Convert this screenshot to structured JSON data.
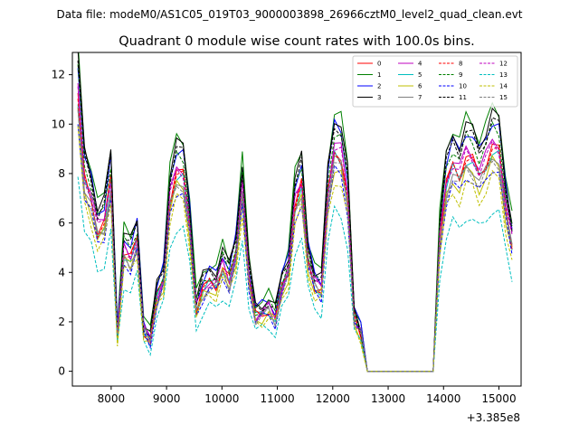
{
  "suptitle": "Data file: modeM0/AS1C05_019T03_9000003898_26966cztM0_level2_quad_clean.evt",
  "chart_data": {
    "type": "line",
    "title": "Quadrant 0 module wise count rates with 100.0s bins.",
    "xlabel": "",
    "ylabel": "",
    "x_offset_label": "+3.385e8",
    "xlim": [
      7300,
      15400
    ],
    "ylim": [
      -0.6,
      12.9
    ],
    "xticks": [
      8000,
      9000,
      10000,
      11000,
      12000,
      13000,
      14000,
      15000
    ],
    "yticks": [
      0,
      2,
      4,
      6,
      8,
      10,
      12
    ],
    "legend_position": "top-right",
    "series_template": [
      11.6,
      8.0,
      7.2,
      5.9,
      6.2,
      8.0,
      1.5,
      5.0,
      4.7,
      5.5,
      1.7,
      1.3,
      3.1,
      3.8,
      7.2,
      8.3,
      8.2,
      6.1,
      2.6,
      3.4,
      3.7,
      3.6,
      4.4,
      3.8,
      4.9,
      7.6,
      3.9,
      2.3,
      2.4,
      2.6,
      2.2,
      3.5,
      4.2,
      7.0,
      7.8,
      4.6,
      3.6,
      3.4,
      7.4,
      9.2,
      9.0,
      7.3,
      2.2,
      1.6,
      0.0,
      0.0,
      0.0,
      0.0,
      0.0,
      0.0,
      0.0,
      0.0,
      0.0,
      0.0,
      0.0,
      5.5,
      7.8,
      8.6,
      8.2,
      9.0,
      8.8,
      8.2,
      8.7,
      9.4,
      9.2,
      6.9,
      5.4
    ],
    "series": [
      {
        "name": "0",
        "color": "#ff0000",
        "dash": "solid",
        "scale": 0.97,
        "offset": 0.0
      },
      {
        "name": "1",
        "color": "#008000",
        "dash": "solid",
        "scale": 1.12,
        "offset": 0.2
      },
      {
        "name": "2",
        "color": "#0000ff",
        "dash": "solid",
        "scale": 1.07,
        "offset": 0.1
      },
      {
        "name": "3",
        "color": "#000000",
        "dash": "solid",
        "scale": 1.1,
        "offset": 0.1
      },
      {
        "name": "4",
        "color": "#bf00bf",
        "dash": "solid",
        "scale": 1.0,
        "offset": 0.0
      },
      {
        "name": "5",
        "color": "#00bfbf",
        "dash": "solid",
        "scale": 0.95,
        "offset": 0.0
      },
      {
        "name": "6",
        "color": "#bfbf00",
        "dash": "solid",
        "scale": 0.9,
        "offset": 0.0
      },
      {
        "name": "7",
        "color": "#808080",
        "dash": "solid",
        "scale": 0.93,
        "offset": 0.0
      },
      {
        "name": "8",
        "color": "#ff0000",
        "dash": "dashed",
        "scale": 0.96,
        "offset": 0.0
      },
      {
        "name": "9",
        "color": "#008000",
        "dash": "dashed",
        "scale": 1.05,
        "offset": 0.0
      },
      {
        "name": "10",
        "color": "#0000ff",
        "dash": "dashed",
        "scale": 0.88,
        "offset": 0.0
      },
      {
        "name": "11",
        "color": "#000000",
        "dash": "dashed",
        "scale": 1.08,
        "offset": 0.0
      },
      {
        "name": "12",
        "color": "#bf00bf",
        "dash": "dashed",
        "scale": 0.98,
        "offset": 0.0
      },
      {
        "name": "13",
        "color": "#00bfbf",
        "dash": "dashed",
        "scale": 0.7,
        "offset": 0.0
      },
      {
        "name": "14",
        "color": "#bfbf00",
        "dash": "dashed",
        "scale": 0.84,
        "offset": 0.0
      },
      {
        "name": "15",
        "color": "#808080",
        "dash": "dashed",
        "scale": 0.91,
        "offset": 0.0
      }
    ]
  }
}
